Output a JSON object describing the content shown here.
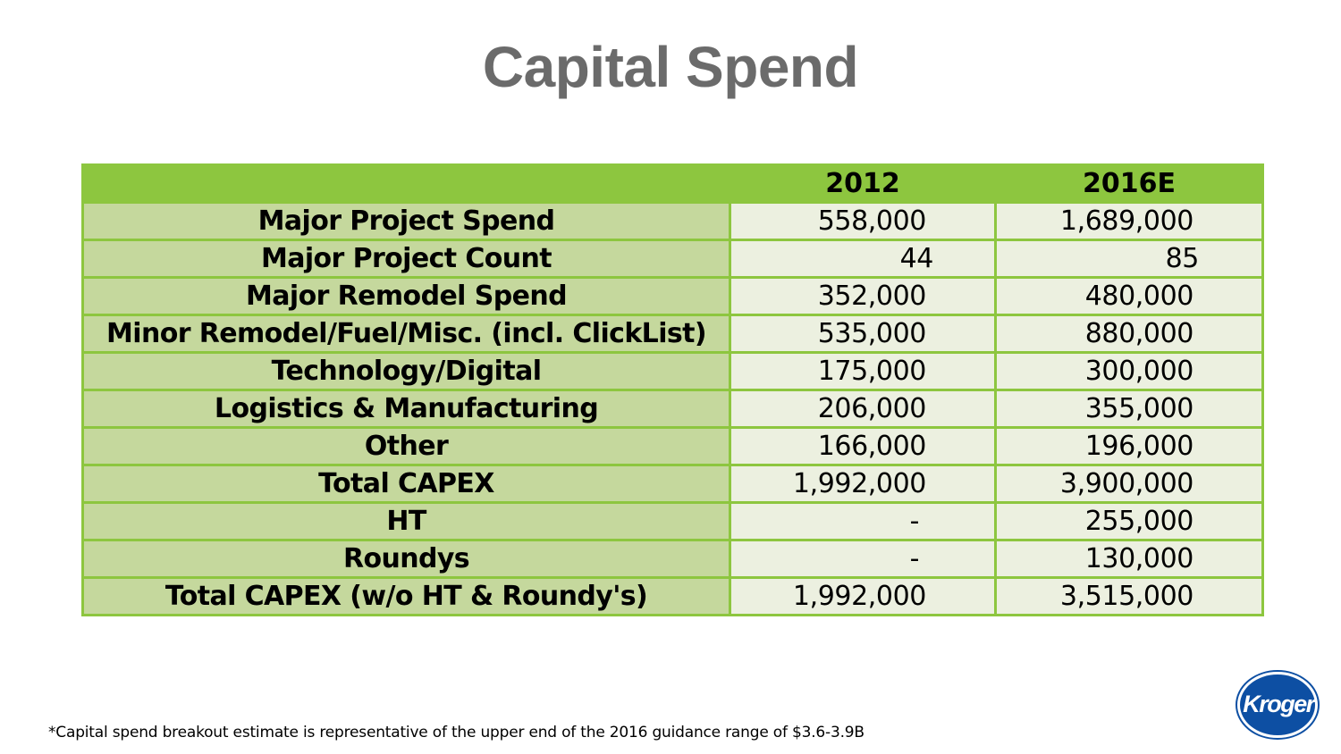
{
  "title": "Capital Spend",
  "table": {
    "header": [
      "",
      "2012",
      "2016E"
    ],
    "rows": [
      {
        "label": "Major Project Spend",
        "v2012": "558,000",
        "v2016": "1,689,000"
      },
      {
        "label": "Major Project Count",
        "v2012": "44",
        "v2016": "85"
      },
      {
        "label": "Major Remodel Spend",
        "v2012": "352,000",
        "v2016": "480,000"
      },
      {
        "label": "Minor Remodel/Fuel/Misc. (incl. ClickList)",
        "v2012": "535,000",
        "v2016": "880,000"
      },
      {
        "label": "Technology/Digital",
        "v2012": "175,000",
        "v2016": "300,000"
      },
      {
        "label": "Logistics & Manufacturing",
        "v2012": "206,000",
        "v2016": "355,000"
      },
      {
        "label": "Other",
        "v2012": "166,000",
        "v2016": "196,000"
      },
      {
        "label": "Total CAPEX",
        "v2012": "1,992,000",
        "v2016": "3,900,000"
      },
      {
        "label": "HT",
        "v2012": "-",
        "v2016": "255,000"
      },
      {
        "label": "Roundys",
        "v2012": "-",
        "v2016": "130,000"
      },
      {
        "label": "Total CAPEX (w/o HT & Roundy's)",
        "v2012": "1,992,000",
        "v2016": "3,515,000"
      }
    ]
  },
  "footnote": "*Capital spend breakout estimate is representative of the upper end of the 2016 guidance range of $3.6-3.9B",
  "logo": {
    "text": "Kroger",
    "icon": "kroger-logo"
  },
  "colors": {
    "title": "#6b6b6b",
    "header_green": "#8dc63f",
    "label_green": "#c5d89d",
    "value_bg": "#ecf0e0",
    "logo_blue": "#0d4fa3"
  }
}
